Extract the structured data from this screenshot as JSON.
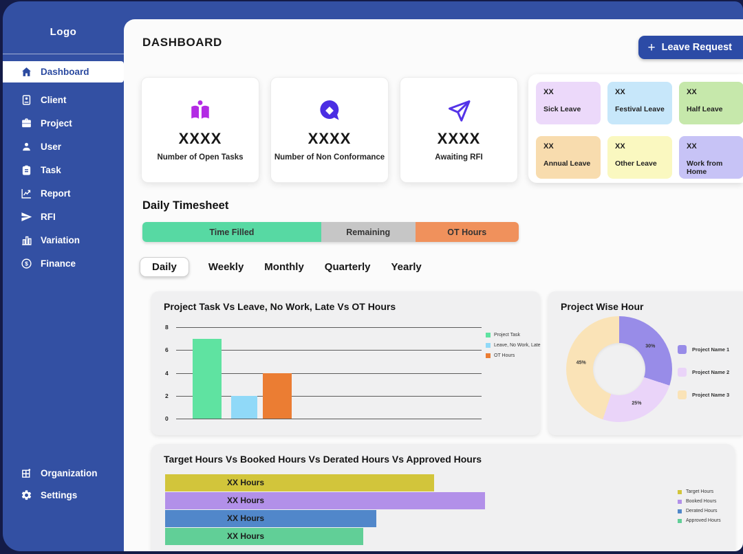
{
  "header": {
    "title": "DASHBOARD",
    "leave_request": {
      "plus": "+",
      "label": "Leave Request"
    }
  },
  "sidebar": {
    "logo": "Logo",
    "items": [
      {
        "label": "Dashboard",
        "icon": "home-icon",
        "active": true
      },
      {
        "label": "Client",
        "icon": "client-icon"
      },
      {
        "label": "Project",
        "icon": "briefcase-icon"
      },
      {
        "label": "User",
        "icon": "user-icon"
      },
      {
        "label": "Task",
        "icon": "clipboard-icon"
      },
      {
        "label": "Report",
        "icon": "chart-line-icon"
      },
      {
        "label": "RFI",
        "icon": "paper-plane-icon"
      },
      {
        "label": "Variation",
        "icon": "bar-chart-icon"
      },
      {
        "label": "Finance",
        "icon": "dollar-circle-icon"
      }
    ],
    "footer_items": [
      {
        "label": "Organization",
        "icon": "grid-icon"
      },
      {
        "label": "Settings",
        "icon": "gear-icon"
      }
    ]
  },
  "stats": [
    {
      "value": "XXXX",
      "label": "Number of Open Tasks",
      "icon": "reader-icon",
      "icon_color": "#b32be4"
    },
    {
      "value": "XXXX",
      "label": "Number of Non Conformance",
      "icon": "chat-bubble-icon",
      "icon_color": "#4b2ee3"
    },
    {
      "value": "XXXX",
      "label": "Awaiting RFI",
      "icon": "send-outline-icon",
      "icon_color": "#5433e8"
    }
  ],
  "leave_summary": {
    "cards": [
      {
        "value": "XX",
        "label": "Sick Leave",
        "bg": "#ecd9fa"
      },
      {
        "value": "XX",
        "label": "Festival Leave",
        "bg": "#c7e7fa"
      },
      {
        "value": "XX",
        "label": "Half Leave",
        "bg": "#c6e8ab"
      },
      {
        "value": "XX",
        "label": "Annual Leave",
        "bg": "#f8dcae"
      },
      {
        "value": "XX",
        "label": "Other Leave",
        "bg": "#faf8c0"
      },
      {
        "value": "XX",
        "label": "Work from Home",
        "bg": "#c7c3f6"
      }
    ]
  },
  "timesheet": {
    "title": "Daily Timesheet",
    "segments": [
      {
        "label": "Time Filled",
        "color": "#57d9a3",
        "pct": 47.5
      },
      {
        "label": "Remaining",
        "color": "#c6c6c6",
        "pct": 25
      },
      {
        "label": "OT Hours",
        "color": "#f0915c",
        "pct": 27.5
      }
    ],
    "tabs": [
      {
        "label": "Daily",
        "active": true
      },
      {
        "label": "Weekly",
        "active": false
      },
      {
        "label": "Monthly",
        "active": false
      },
      {
        "label": "Quarterly",
        "active": false
      },
      {
        "label": "Yearly",
        "active": false
      }
    ]
  },
  "chart_data": [
    {
      "type": "bar",
      "title": "Project Task Vs Leave, No Work, Late Vs OT Hours",
      "series": [
        {
          "name": "Project Task",
          "value": 7,
          "color": "#5fe3a1"
        },
        {
          "name": "Leave, No Work, Late",
          "value": 2,
          "color": "#90d9f8"
        },
        {
          "name": "OT Hours",
          "value": 4,
          "color": "#eb7d33"
        }
      ],
      "ylim": [
        0,
        8
      ],
      "yticks": [
        0,
        2,
        4,
        6,
        8
      ],
      "grid": true,
      "legend_position": "right"
    },
    {
      "type": "pie",
      "title": "Project Wise Hour",
      "labels": [
        "Project Name 1",
        "Project Name 2",
        "Project Name 3"
      ],
      "values": [
        30,
        25,
        45
      ],
      "value_labels": [
        "30%",
        "25%",
        "45%"
      ],
      "colors": [
        "#988ce8",
        "#ead4f9",
        "#fae3b7"
      ],
      "donut": true,
      "legend_position": "right"
    },
    {
      "type": "bar-horizontal",
      "title": "Target Hours Vs Booked Hours Vs Derated Hours Vs Approved Hours",
      "categories": [
        "Target Hours",
        "Booked Hours",
        "Derated Hours",
        "Approved Hours"
      ],
      "values_relative_pct": [
        84,
        100,
        66,
        62
      ],
      "bar_label": "XX Hours",
      "colors": [
        "#d2c53b",
        "#b290e9",
        "#5187ca",
        "#61cf97"
      ],
      "legend_position": "right"
    }
  ],
  "colors": {
    "frame": "#141b47",
    "chrome_blue": "#3350a3",
    "accent_blue": "#2c4ba6",
    "panel_bg": "#fbfbfb",
    "card_bg": "#f0f0f1"
  }
}
